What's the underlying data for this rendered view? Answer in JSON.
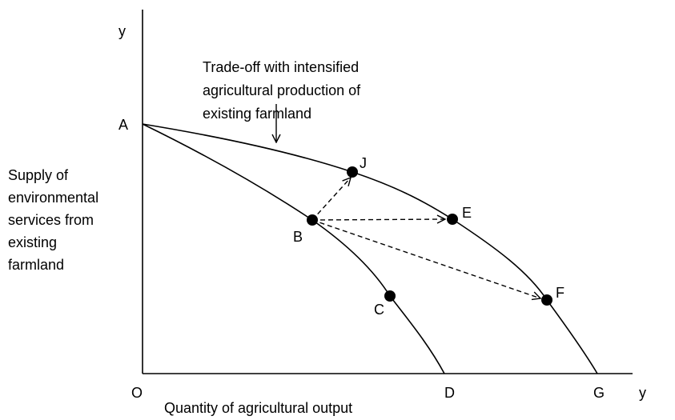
{
  "axes": {
    "y_top": "y",
    "x_right": "y",
    "origin": "O"
  },
  "y_axis_label": [
    "Supply of",
    "environmental",
    "services from",
    "existing",
    "farmland"
  ],
  "x_axis_label": "Quantity of agricultural output",
  "annotation": [
    "Trade-off with intensified",
    "agricultural production of",
    "existing farmland"
  ],
  "points": {
    "A": "A",
    "B": "B",
    "C": "C",
    "D": "D",
    "E": "E",
    "F": "F",
    "G": "G",
    "J": "J"
  }
}
